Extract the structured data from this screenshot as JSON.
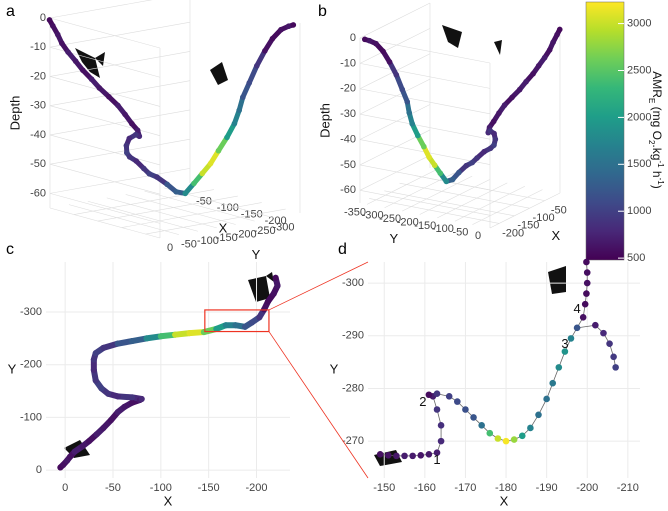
{
  "chart_data": [
    {
      "type": "scatter3d",
      "label": "a",
      "xlabel": "X",
      "ylabel": "Y",
      "zlabel": "Depth",
      "xlim": [
        0,
        -230
      ],
      "ylim": [
        0,
        -370
      ],
      "zlim": [
        0,
        -65
      ],
      "xticks": [
        -50,
        -100,
        -150,
        -200
      ],
      "yticks": [
        0,
        -50,
        -100,
        -150,
        -200,
        -250,
        -300
      ],
      "zticks": [
        0,
        -10,
        -20,
        -30,
        -40,
        -50,
        -60
      ],
      "x": [
        5,
        2,
        -2,
        -5,
        -10,
        -18,
        -25,
        -33,
        -40,
        -48,
        -55,
        -62,
        -70,
        -78,
        -80,
        -70,
        -55,
        -45,
        -38,
        -32,
        -30,
        -30,
        -32,
        -40,
        -55,
        -70,
        -85,
        -100,
        -115,
        -130,
        -145,
        -158,
        -168,
        -178,
        -188,
        -195,
        -203,
        -208,
        -212,
        -218,
        -222,
        -220
      ],
      "y": [
        -5,
        -10,
        -18,
        -25,
        -35,
        -45,
        -55,
        -68,
        -80,
        -95,
        -110,
        -120,
        -128,
        -133,
        -135,
        -138,
        -140,
        -145,
        -155,
        -170,
        -190,
        -210,
        -222,
        -232,
        -240,
        -245,
        -250,
        -254,
        -257,
        -260,
        -262,
        -268,
        -275,
        -275,
        -272,
        -280,
        -290,
        -305,
        -320,
        -335,
        -350,
        -365
      ],
      "depth": [
        -1,
        -3,
        -6,
        -9,
        -12,
        -15,
        -18,
        -21,
        -24,
        -27,
        -30,
        -33,
        -36,
        -38,
        -40,
        -40,
        -42,
        -45,
        -48,
        -50,
        -52,
        -55,
        -57,
        -58,
        -60,
        -62,
        -62,
        -58,
        -54,
        -50,
        -45,
        -40,
        -35,
        -30,
        -25,
        -20,
        -14,
        -9,
        -5,
        -2,
        -1,
        -1
      ],
      "amr": [
        550,
        600,
        650,
        600,
        700,
        650,
        600,
        700,
        650,
        600,
        700,
        650,
        600,
        700,
        800,
        900,
        800,
        900,
        1000,
        900,
        800,
        900,
        1000,
        900,
        1200,
        1300,
        1800,
        2400,
        3000,
        3100,
        2600,
        2000,
        1700,
        1500,
        1200,
        1100,
        900,
        600,
        550,
        600,
        650,
        550
      ]
    },
    {
      "type": "scatter3d",
      "label": "b",
      "xlabel": "X",
      "ylabel": "Y",
      "zlabel": "Depth",
      "xlim": [
        0,
        -230
      ],
      "ylim": [
        0,
        -370
      ],
      "zlim": [
        0,
        -65
      ],
      "xticks": [
        -50,
        -100,
        -150,
        -200
      ],
      "yticks": [
        -350,
        -300,
        -250,
        -200,
        -150,
        -100,
        -50,
        0
      ],
      "zticks": [
        0,
        -10,
        -20,
        -30,
        -40,
        -50,
        -60
      ],
      "colorbar": {
        "label_parts": [
          "AMR",
          "E",
          " (mg O",
          "2",
          ".kg",
          "-1",
          " h",
          "-1",
          ")"
        ],
        "lim": [
          480,
          3230
        ],
        "ticks": [
          500,
          1000,
          1500,
          2000,
          2500,
          3000
        ]
      }
    },
    {
      "type": "scatter",
      "label": "c",
      "xlabel": "X",
      "ylabel": "Y",
      "xlim": [
        20,
        -235
      ],
      "ylim": [
        15,
        -395
      ],
      "xticks": [
        0,
        -50,
        -100,
        -150,
        -200
      ],
      "yticks": [
        0,
        -100,
        -200,
        -300
      ]
    },
    {
      "type": "scatter",
      "label": "d",
      "xlabel": "X",
      "ylabel": "Y",
      "xlim": [
        -146,
        -213
      ],
      "ylim": [
        -263,
        -304
      ],
      "xticks": [
        -150,
        -160,
        -170,
        -180,
        -190,
        -200,
        -210
      ],
      "yticks": [
        -270,
        -280,
        -290,
        -300
      ],
      "x": [
        -149,
        -151,
        -153,
        -155,
        -157,
        -159,
        -161,
        -163,
        -164,
        -164,
        -163,
        -162,
        -161,
        -163,
        -166,
        -168,
        -170,
        -172,
        -174,
        -176,
        -178,
        -180,
        -182,
        -184,
        -186,
        -188,
        -190,
        -191.5,
        -193,
        -194.5,
        -196,
        -197.5,
        -199,
        -199.5,
        -199.8,
        -200,
        -200,
        -199.8,
        -202,
        -204,
        -205.5,
        -206.5,
        -207
      ],
      "y": [
        -267.5,
        -267.3,
        -267.2,
        -267.2,
        -267.2,
        -267.3,
        -267.5,
        -267.8,
        -270,
        -273,
        -276,
        -278.5,
        -278.8,
        -279,
        -278.5,
        -277.5,
        -276,
        -274.5,
        -273,
        -271.5,
        -270.5,
        -270,
        -270.3,
        -271,
        -272.5,
        -275,
        -278,
        -281,
        -284,
        -287,
        -289.5,
        -291.5,
        -293.5,
        -296,
        -298,
        -300,
        -302,
        -304,
        -292,
        -290.5,
        -288.5,
        -286,
        -284
      ],
      "amr": [
        600,
        620,
        650,
        700,
        680,
        640,
        660,
        700,
        800,
        850,
        900,
        700,
        560,
        900,
        1000,
        1100,
        1150,
        1200,
        1500,
        2400,
        3000,
        3200,
        2800,
        2000,
        1700,
        1500,
        1500,
        1600,
        1800,
        1900,
        1700,
        1200,
        600,
        550,
        560,
        600,
        580,
        560,
        700,
        800,
        900,
        950,
        1000
      ],
      "annotations": [
        "1",
        "2",
        "3",
        "4"
      ]
    }
  ]
}
